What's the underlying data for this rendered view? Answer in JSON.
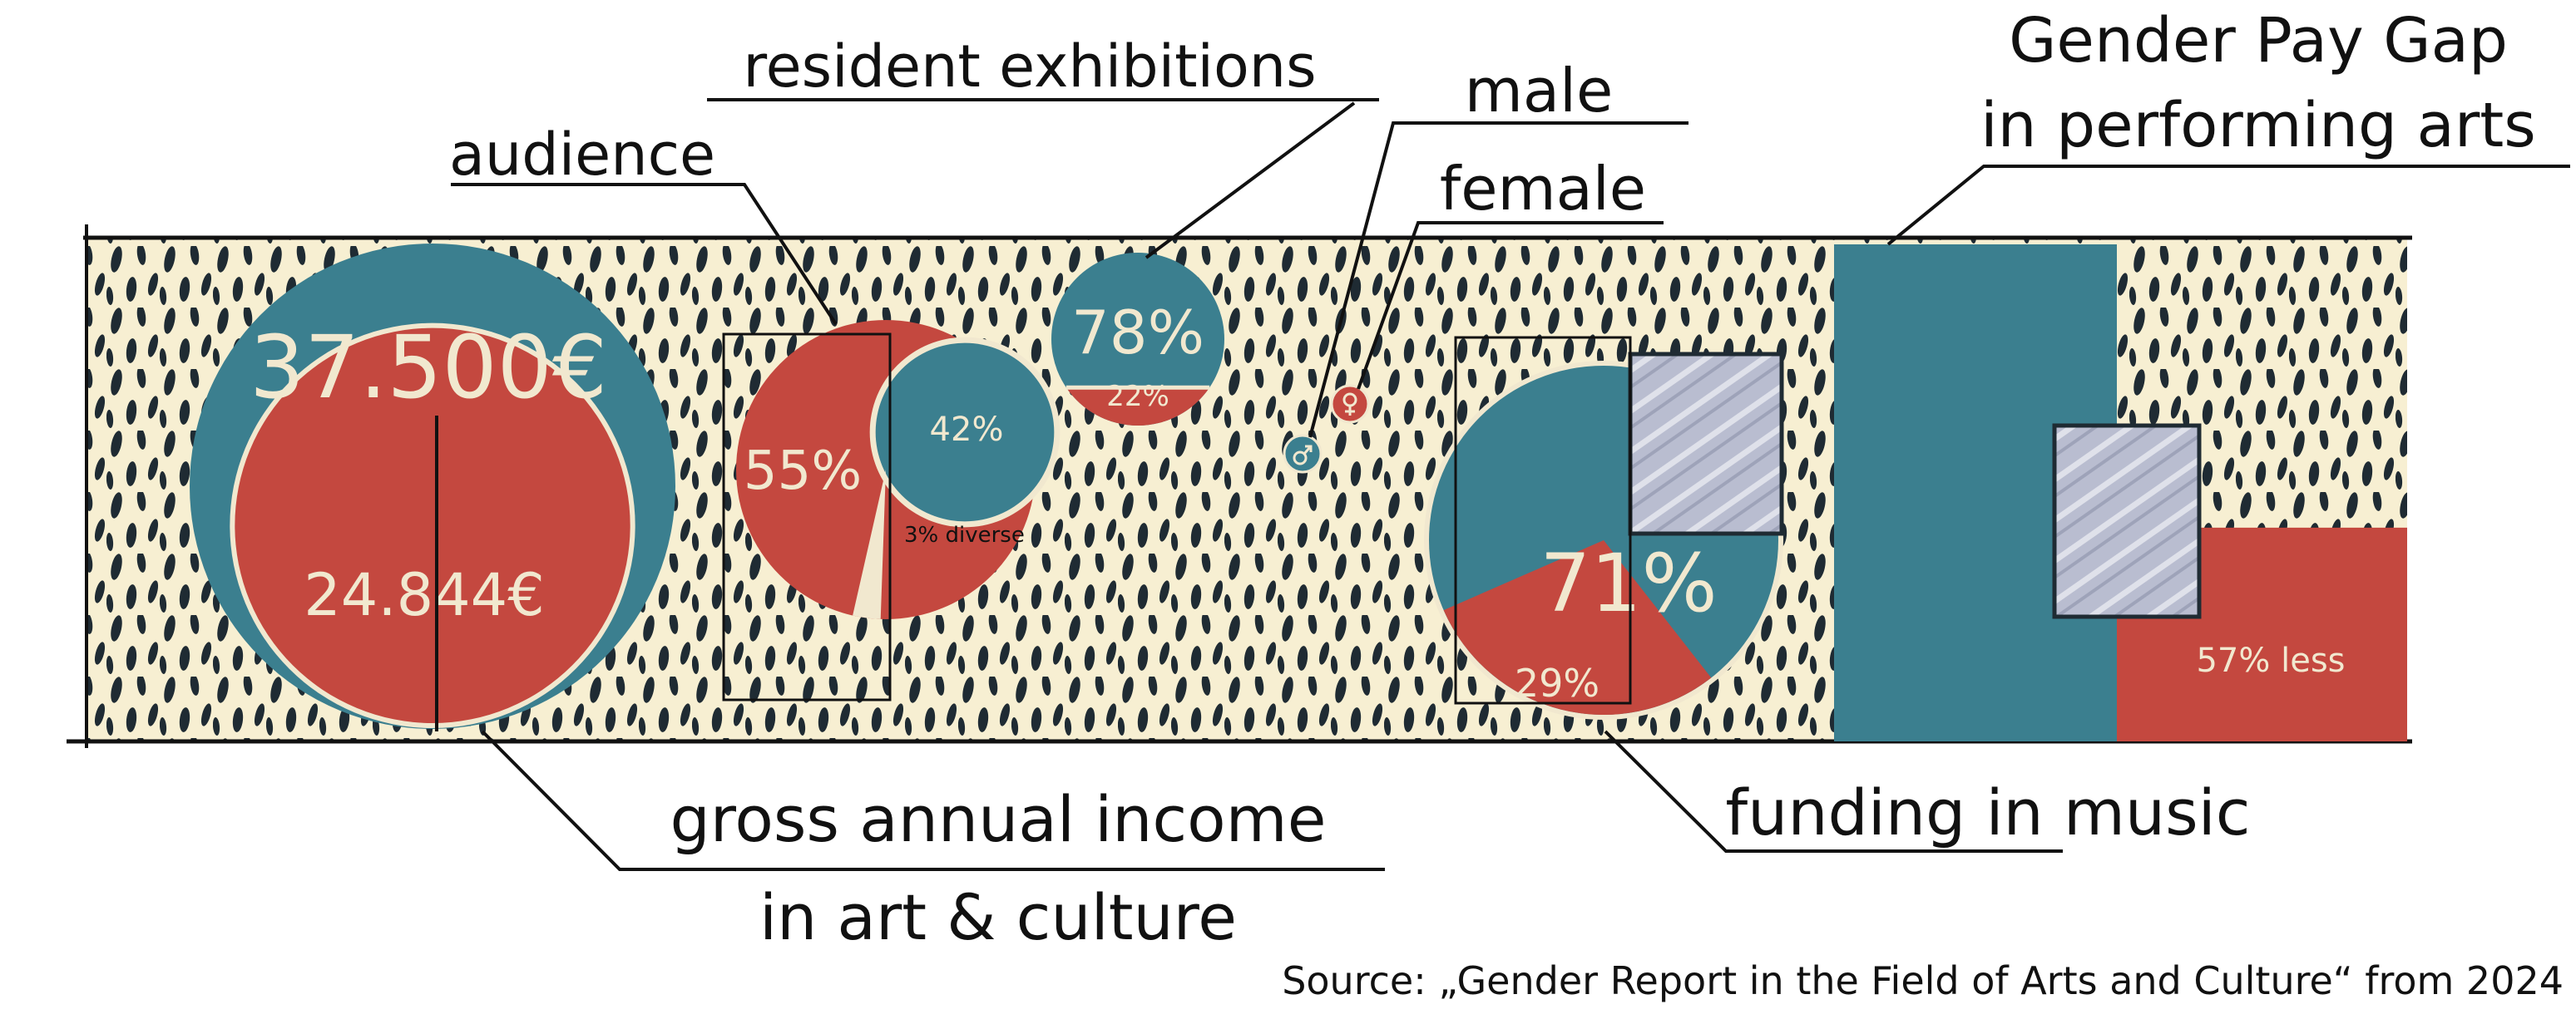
{
  "colors": {
    "background": "#ffffff",
    "pattern_bg": "#f7efd2",
    "dots": "#1f2b33",
    "teal": "#3b7f8f",
    "red": "#c4483f",
    "cream": "#f1e8cf",
    "mirror": "#b9bdd0",
    "ink": "#111111"
  },
  "labels": {
    "resident_exhibitions": "resident exhibitions",
    "audience": "audience",
    "male": "male",
    "female": "female",
    "gender_pay_gap_line1": "Gender Pay Gap",
    "gender_pay_gap_line2": "in performing arts",
    "gross_income_line1": "gross annual income",
    "gross_income_line2": "in art & culture",
    "funding_in_music": "funding in music",
    "source": "Source: „Gender Report in the Field of Arts and Culture“ from 2024"
  },
  "legend": {
    "male_icon": "male-symbol-icon",
    "female_icon": "female-symbol-icon",
    "male_color": "#3b7f8f",
    "female_color": "#c4483f"
  },
  "chart_data": [
    {
      "type": "bubble",
      "title": "gross annual income in art & culture",
      "series": [
        {
          "name": "male",
          "value": 37500,
          "label": "37.500€"
        },
        {
          "name": "female",
          "value": 24844,
          "label": "24.844€"
        }
      ]
    },
    {
      "type": "pie",
      "title": "audience",
      "slices": [
        {
          "name": "female",
          "value": 55,
          "label": "55%"
        },
        {
          "name": "male",
          "value": 42,
          "label": "42%"
        },
        {
          "name": "diverse",
          "value": 3,
          "label": "3% diverse"
        }
      ]
    },
    {
      "type": "pie",
      "title": "resident exhibitions",
      "slices": [
        {
          "name": "male",
          "value": 78,
          "label": "78%"
        },
        {
          "name": "female",
          "value": 22,
          "label": "22%"
        }
      ]
    },
    {
      "type": "pie",
      "title": "funding in music",
      "slices": [
        {
          "name": "male",
          "value": 71,
          "label": "71%"
        },
        {
          "name": "female",
          "value": 29,
          "label": "29%"
        }
      ]
    },
    {
      "type": "bar",
      "title": "Gender Pay Gap in performing arts",
      "series": [
        {
          "name": "male",
          "value": 100,
          "label": ""
        },
        {
          "name": "female",
          "value": 43,
          "label": "57% less"
        }
      ]
    }
  ]
}
